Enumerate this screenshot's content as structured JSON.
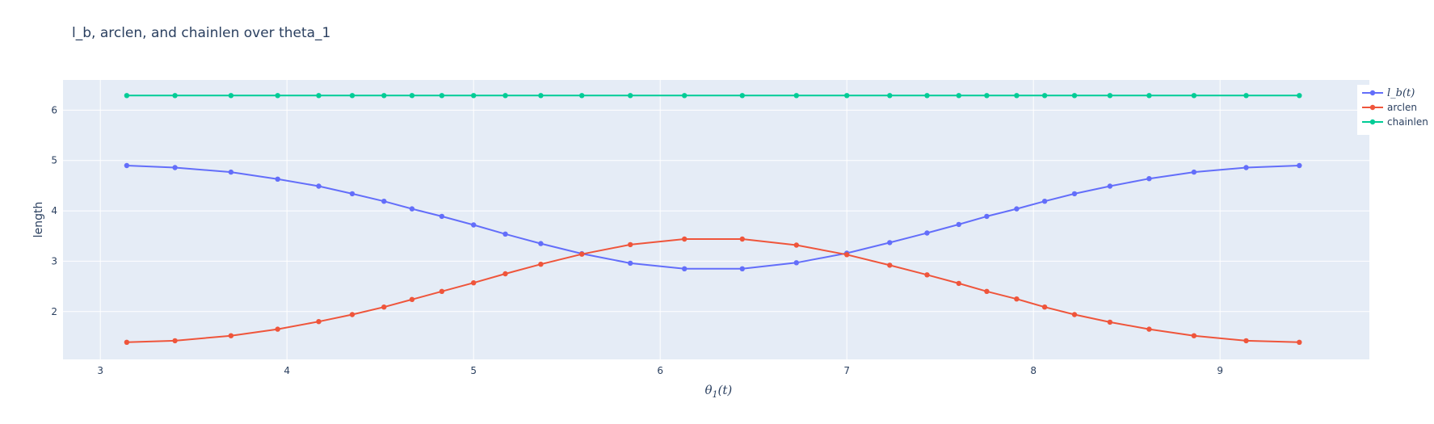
{
  "chart_data": {
    "type": "line",
    "title": "l_b, arclen, and chainlen over theta_1",
    "xlabel": "θ1(t)",
    "ylabel": "length",
    "xlim": [
      2.8,
      9.8
    ],
    "ylim": [
      1.05,
      6.6
    ],
    "xticks": [
      3,
      4,
      5,
      6,
      7,
      8,
      9
    ],
    "yticks": [
      2,
      3,
      4,
      5,
      6
    ],
    "grid": true,
    "legend_position": "top-right",
    "x": [
      3.1416,
      3.4,
      3.7,
      3.95,
      4.17,
      4.35,
      4.52,
      4.67,
      4.83,
      5.0,
      5.17,
      5.36,
      5.58,
      5.84,
      6.13,
      6.44,
      6.73,
      7.0,
      7.23,
      7.43,
      7.6,
      7.75,
      7.91,
      8.06,
      8.22,
      8.41,
      8.62,
      8.86,
      9.14,
      9.4248
    ],
    "series": [
      {
        "name": "l_b(t)",
        "color": "#636efa",
        "values": [
          4.9,
          4.86,
          4.77,
          4.63,
          4.49,
          4.34,
          4.19,
          4.04,
          3.89,
          3.72,
          3.54,
          3.35,
          3.15,
          2.96,
          2.85,
          2.85,
          2.97,
          3.16,
          3.37,
          3.56,
          3.73,
          3.89,
          4.04,
          4.19,
          4.34,
          4.49,
          4.64,
          4.77,
          4.86,
          4.9
        ]
      },
      {
        "name": "arclen",
        "color": "#ef553b",
        "values": [
          1.39,
          1.42,
          1.52,
          1.65,
          1.8,
          1.94,
          2.09,
          2.24,
          2.4,
          2.57,
          2.75,
          2.94,
          3.14,
          3.33,
          3.44,
          3.44,
          3.32,
          3.13,
          2.92,
          2.73,
          2.56,
          2.4,
          2.25,
          2.09,
          1.94,
          1.79,
          1.65,
          1.52,
          1.42,
          1.39
        ]
      },
      {
        "name": "chainlen",
        "color": "#00cc96",
        "values": [
          6.29,
          6.29,
          6.29,
          6.29,
          6.29,
          6.29,
          6.29,
          6.29,
          6.29,
          6.29,
          6.29,
          6.29,
          6.29,
          6.29,
          6.29,
          6.29,
          6.29,
          6.29,
          6.29,
          6.29,
          6.29,
          6.29,
          6.29,
          6.29,
          6.29,
          6.29,
          6.29,
          6.29,
          6.29,
          6.29
        ]
      }
    ]
  },
  "colors": {
    "plot_bg": "#e5ecf6",
    "grid": "#ffffff",
    "text": "#2a3f5f"
  }
}
